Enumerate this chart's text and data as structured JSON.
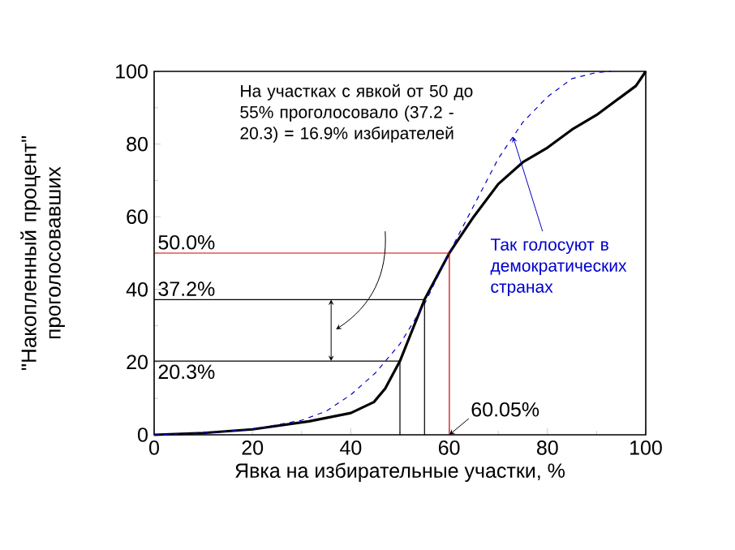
{
  "chart_data": {
    "type": "line",
    "xlabel": "Явка на избирательные участки, %",
    "ylabel": "\"Накопленный процент\" проголосовавших",
    "xlim": [
      0,
      100
    ],
    "ylim": [
      0,
      100
    ],
    "xticks": [
      0,
      20,
      40,
      60,
      80,
      100
    ],
    "yticks": [
      0,
      20,
      40,
      60,
      80,
      100
    ],
    "grid": false,
    "series": [
      {
        "color": "#000000",
        "line_style": "solid",
        "x": [
          0,
          10,
          20,
          31.5,
          40,
          44.7,
          47,
          50,
          55,
          60.05,
          62,
          65,
          70,
          75,
          80,
          85,
          90,
          95,
          98,
          100
        ],
        "values": [
          0,
          0.5,
          1.5,
          3.7,
          6,
          9,
          12.7,
          20.3,
          37.2,
          50,
          54,
          60,
          69,
          75,
          79,
          84,
          88,
          93,
          96,
          100
        ]
      },
      {
        "color": "#0000cc",
        "line_style": "dashed",
        "x": [
          0,
          10,
          20,
          30,
          35,
          40,
          45,
          50,
          55,
          60,
          65,
          70,
          75,
          80,
          85,
          90,
          93
        ],
        "values": [
          0,
          0.5,
          1.5,
          4,
          6.5,
          11,
          17,
          25,
          36,
          50,
          63,
          76,
          86,
          93,
          98,
          99.7,
          100
        ]
      },
      {
        "color": "#cc0000",
        "line_style": "solid",
        "x": [
          0,
          60.05,
          60.05
        ],
        "values": [
          50,
          50,
          0
        ]
      },
      {
        "color": "#000000",
        "line_style": "solid",
        "x": [
          0,
          55,
          55
        ],
        "values": [
          37.2,
          37.2,
          0
        ]
      },
      {
        "color": "#000000",
        "line_style": "solid",
        "x": [
          0,
          50,
          50
        ],
        "values": [
          20.3,
          20.3,
          0
        ]
      }
    ],
    "annotations": [
      "На участках с явкой от 50 до 55% проголосовало (37.2 - 20.3) = 16.9% избирателей",
      {
        "text": "Так голосуют в демократических странах",
        "x": 73,
        "y": 82
      },
      {
        "text": "50.0%",
        "x": 0,
        "y": 50
      },
      {
        "text": "37.2%",
        "x": 0,
        "y": 37.2
      },
      {
        "text": "20.3%",
        "x": 0,
        "y": 20.3
      },
      {
        "text": "60.05%",
        "x": 60.05,
        "y": 0
      }
    ]
  }
}
